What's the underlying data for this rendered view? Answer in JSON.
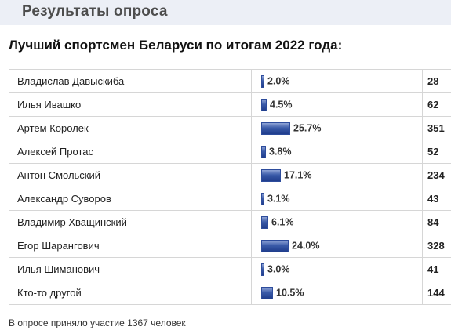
{
  "header": {
    "title": "Результаты опроса"
  },
  "poll": {
    "question": "Лучший спортсмен Беларуси по итогам 2022 года:",
    "options": [
      {
        "name": "Владислав Давыскиба",
        "percent_label": "2.0%",
        "percent": 2.0,
        "votes": "28"
      },
      {
        "name": "Илья Ивашко",
        "percent_label": "4.5%",
        "percent": 4.5,
        "votes": "62"
      },
      {
        "name": "Артем Королек",
        "percent_label": "25.7%",
        "percent": 25.7,
        "votes": "351"
      },
      {
        "name": "Алексей Протас",
        "percent_label": "3.8%",
        "percent": 3.8,
        "votes": "52"
      },
      {
        "name": "Антон Смольский",
        "percent_label": "17.1%",
        "percent": 17.1,
        "votes": "234"
      },
      {
        "name": "Александр Суворов",
        "percent_label": "3.1%",
        "percent": 3.1,
        "votes": "43"
      },
      {
        "name": "Владимир Хващинский",
        "percent_label": "6.1%",
        "percent": 6.1,
        "votes": "84"
      },
      {
        "name": "Егор Шарангович",
        "percent_label": "24.0%",
        "percent": 24.0,
        "votes": "328"
      },
      {
        "name": "Илья Шиманович",
        "percent_label": "3.0%",
        "percent": 3.0,
        "votes": "41"
      },
      {
        "name": "Кто-то другой",
        "percent_label": "10.5%",
        "percent": 10.5,
        "votes": "144"
      }
    ],
    "footer": "В опросе приняло участие 1367 человек"
  },
  "colors": {
    "bar": "#3a5aa8",
    "header_band": "#eceff6"
  }
}
